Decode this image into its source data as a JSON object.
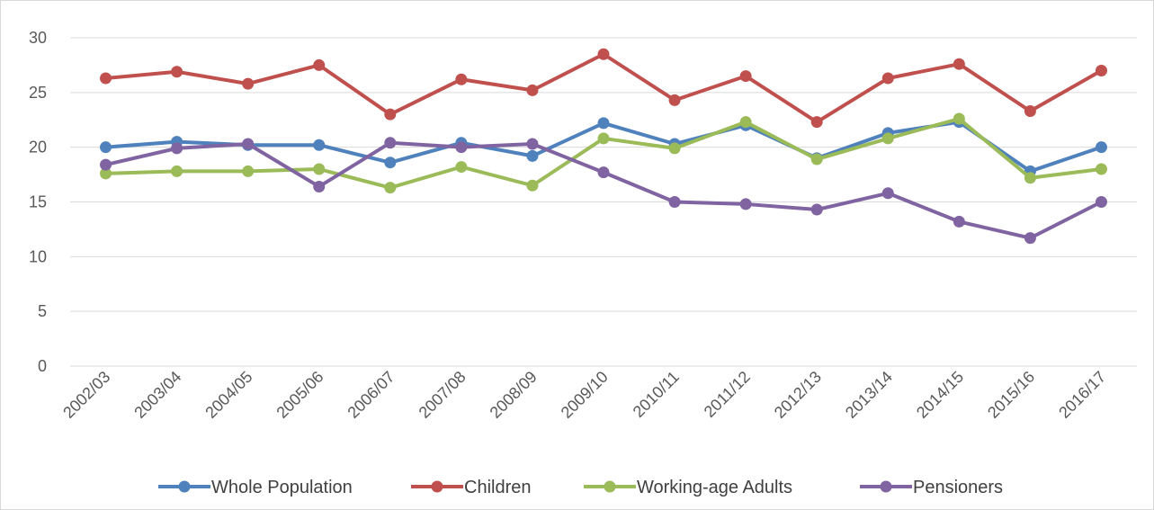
{
  "chart_data": {
    "type": "line",
    "title": "",
    "xlabel": "",
    "ylabel": "",
    "ylim": [
      0,
      30
    ],
    "yticks": [
      0,
      5,
      10,
      15,
      20,
      25,
      30
    ],
    "grid": "horizontal",
    "legend_position": "bottom",
    "categories": [
      "2002/03",
      "2003/04",
      "2004/05",
      "2005/06",
      "2006/07",
      "2007/08",
      "2008/09",
      "2009/10",
      "2010/11",
      "2011/12",
      "2012/13",
      "2013/14",
      "2014/15",
      "2015/16",
      "2016/17"
    ],
    "series": [
      {
        "name": "Whole Population",
        "color": "#4f81bd",
        "values": [
          20,
          20.5,
          20.2,
          20.2,
          18.6,
          20.4,
          19.2,
          22.2,
          20.3,
          22.0,
          19.0,
          21.3,
          22.3,
          17.8,
          20.0
        ]
      },
      {
        "name": "Children",
        "color": "#c0504d",
        "values": [
          26.3,
          26.9,
          25.8,
          27.5,
          23.0,
          26.2,
          25.2,
          28.5,
          24.3,
          26.5,
          22.3,
          26.3,
          27.6,
          23.3,
          27.0
        ]
      },
      {
        "name": "Working-age Adults",
        "color": "#9bbb59",
        "values": [
          17.6,
          17.8,
          17.8,
          18.0,
          16.3,
          18.2,
          16.5,
          20.8,
          19.9,
          22.3,
          18.9,
          20.8,
          22.6,
          17.2,
          18.0
        ]
      },
      {
        "name": "Pensioners",
        "color": "#8064a2",
        "values": [
          18.4,
          19.9,
          20.3,
          16.4,
          20.4,
          20.0,
          20.3,
          17.7,
          15.0,
          14.8,
          14.3,
          15.8,
          13.2,
          11.7,
          15.0
        ]
      }
    ]
  }
}
